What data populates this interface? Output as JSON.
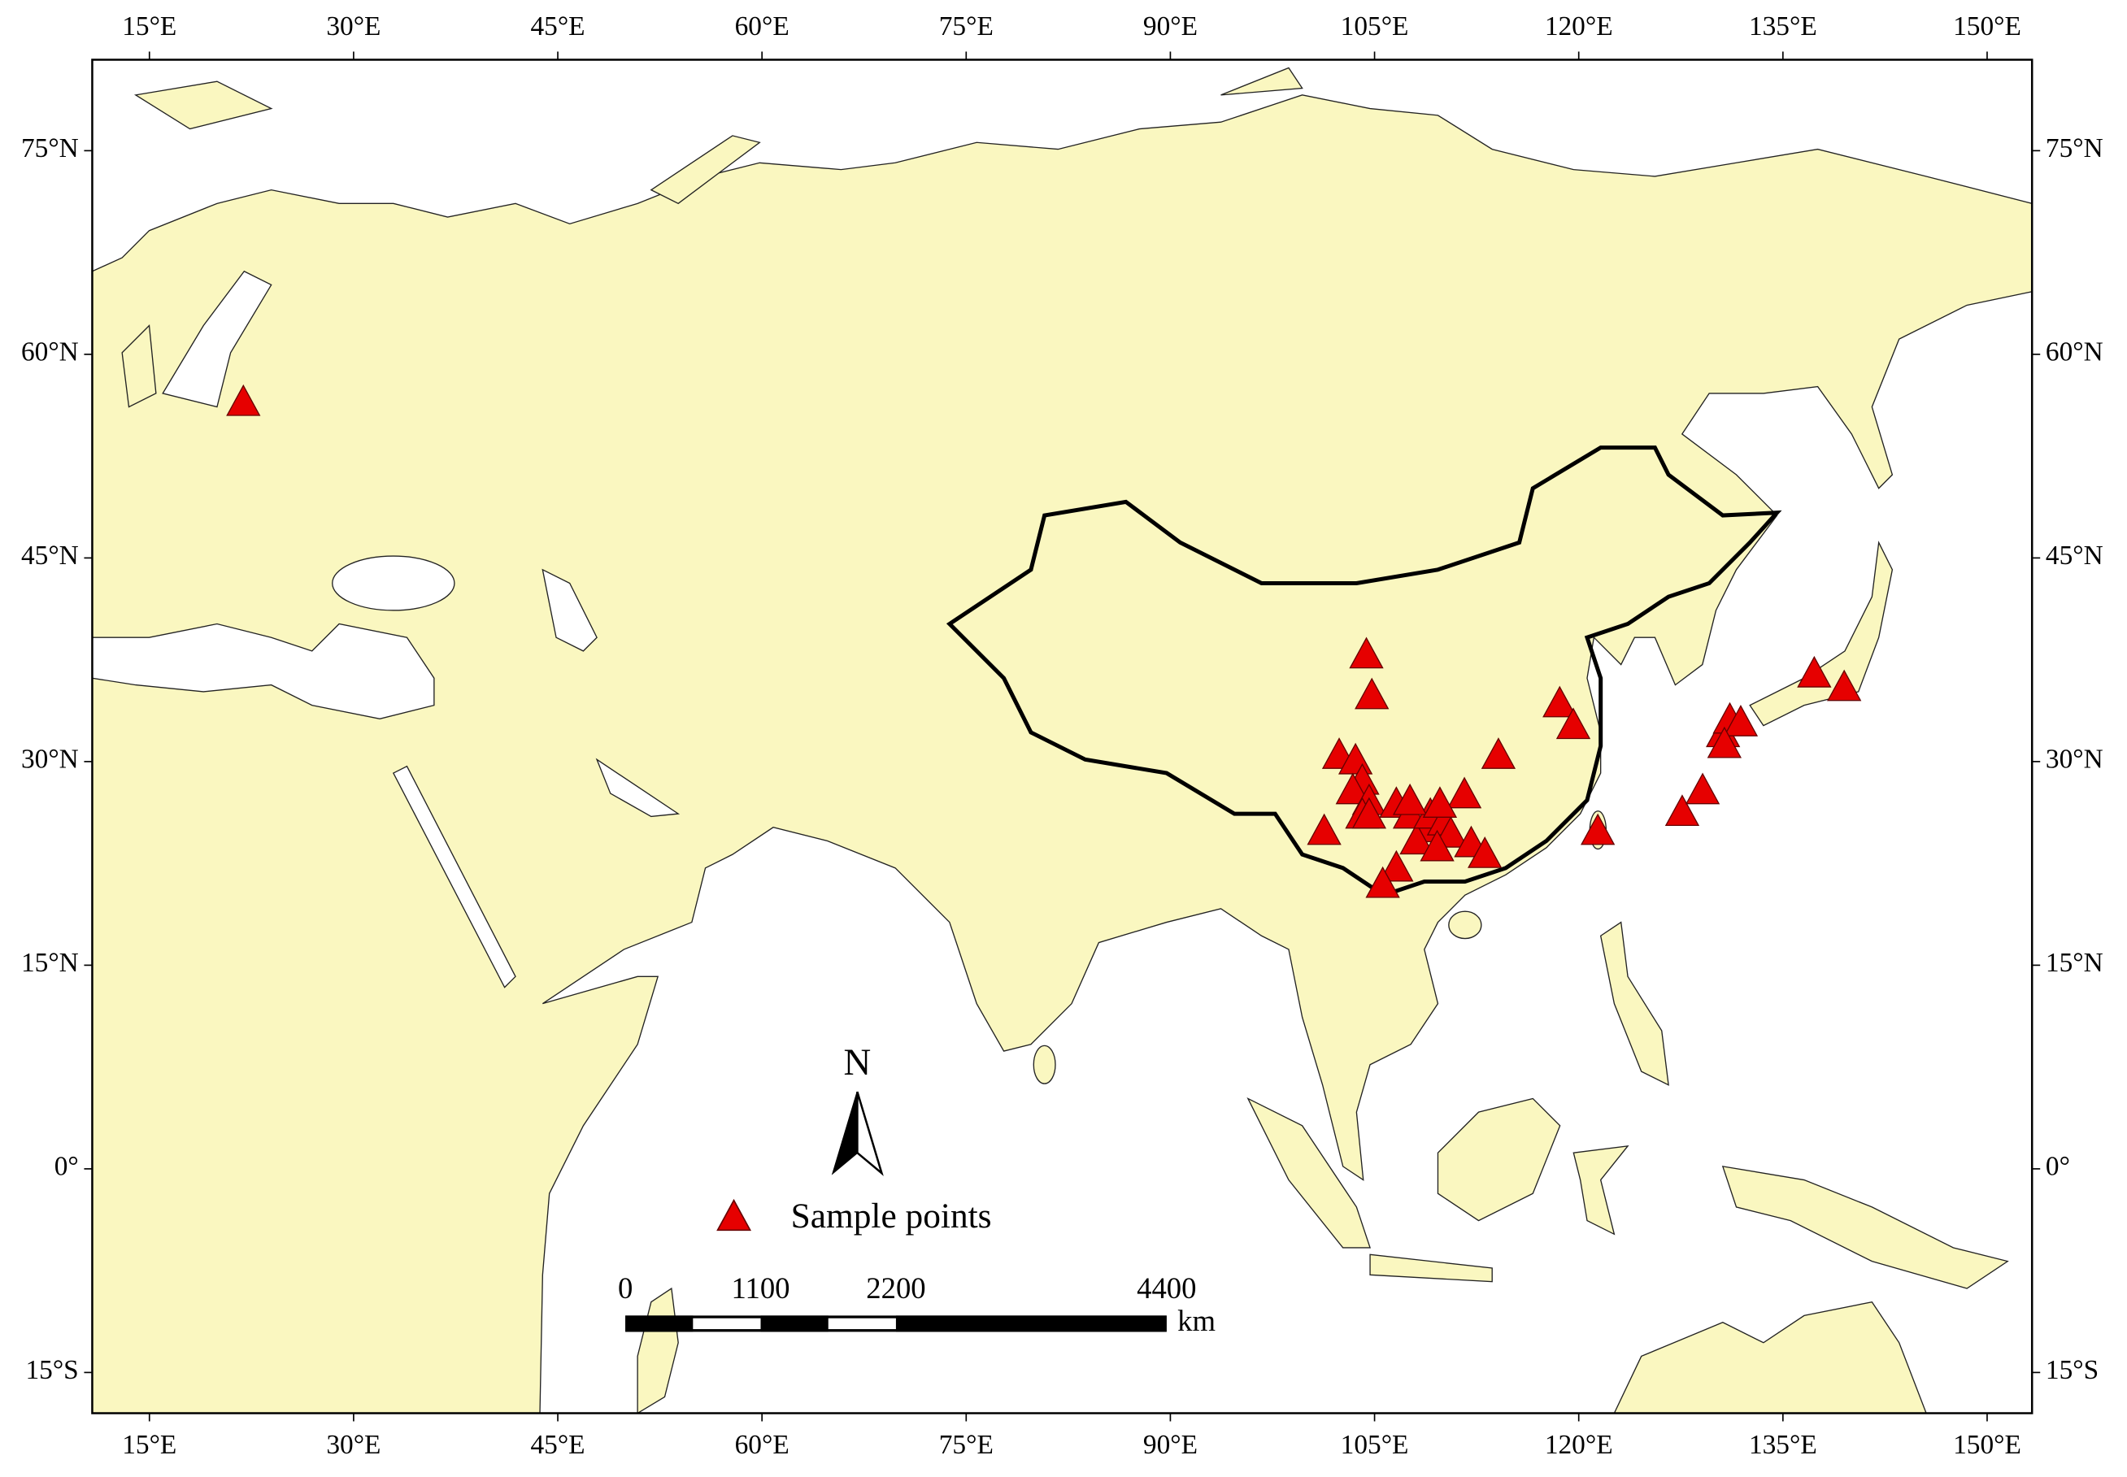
{
  "chart_data": {
    "type": "scatter",
    "xlim": [
      10.8,
      153.3
    ],
    "ylim": [
      -18,
      81.7
    ],
    "xticks": [
      {
        "value": 15,
        "label": "15°E"
      },
      {
        "value": 30,
        "label": "30°E"
      },
      {
        "value": 45,
        "label": "45°E"
      },
      {
        "value": 60,
        "label": "60°E"
      },
      {
        "value": 75,
        "label": "75°E"
      },
      {
        "value": 90,
        "label": "90°E"
      },
      {
        "value": 105,
        "label": "105°E"
      },
      {
        "value": 120,
        "label": "120°E"
      },
      {
        "value": 135,
        "label": "135°E"
      },
      {
        "value": 150,
        "label": "150°E"
      }
    ],
    "yticks": [
      {
        "value": 75,
        "label": "75°N"
      },
      {
        "value": 60,
        "label": "60°N"
      },
      {
        "value": 45,
        "label": "45°N"
      },
      {
        "value": 30,
        "label": "30°N"
      },
      {
        "value": 15,
        "label": "15°N"
      },
      {
        "value": 0,
        "label": "0°"
      },
      {
        "value": -15,
        "label": "15°S"
      }
    ],
    "series": [
      {
        "name": "Sample points",
        "color": "#e60000",
        "x": [
          21.9,
          104.4,
          104.8,
          102.4,
          103.6,
          104.1,
          103.4,
          104.6,
          104.1,
          101.3,
          106.6,
          107.6,
          108.6,
          108.1,
          109.1,
          110.1,
          110.6,
          111.6,
          109.6,
          112.1,
          113.1,
          106.6,
          105.6,
          114.1,
          118.6,
          119.6,
          121.4,
          127.6,
          129.1,
          130.6,
          131.1,
          131.9,
          130.7,
          137.3,
          139.5,
          104.6,
          107.6,
          109.8
        ],
        "values": [
          56.5,
          37.9,
          34.9,
          30.5,
          30.1,
          28.6,
          27.9,
          27.1,
          26.1,
          24.9,
          26.9,
          26.1,
          25.1,
          24.2,
          26.1,
          25.6,
          24.7,
          27.6,
          23.7,
          24.0,
          23.2,
          22.2,
          21.0,
          30.5,
          34.3,
          32.7,
          24.9,
          26.3,
          27.9,
          32.1,
          33.1,
          32.9,
          31.3,
          36.5,
          35.5,
          26.1,
          27.1,
          26.9
        ]
      }
    ],
    "north_label": "N",
    "scale_bar": {
      "ticks": [
        0,
        1100,
        2200,
        4400
      ],
      "unit": "km"
    }
  }
}
